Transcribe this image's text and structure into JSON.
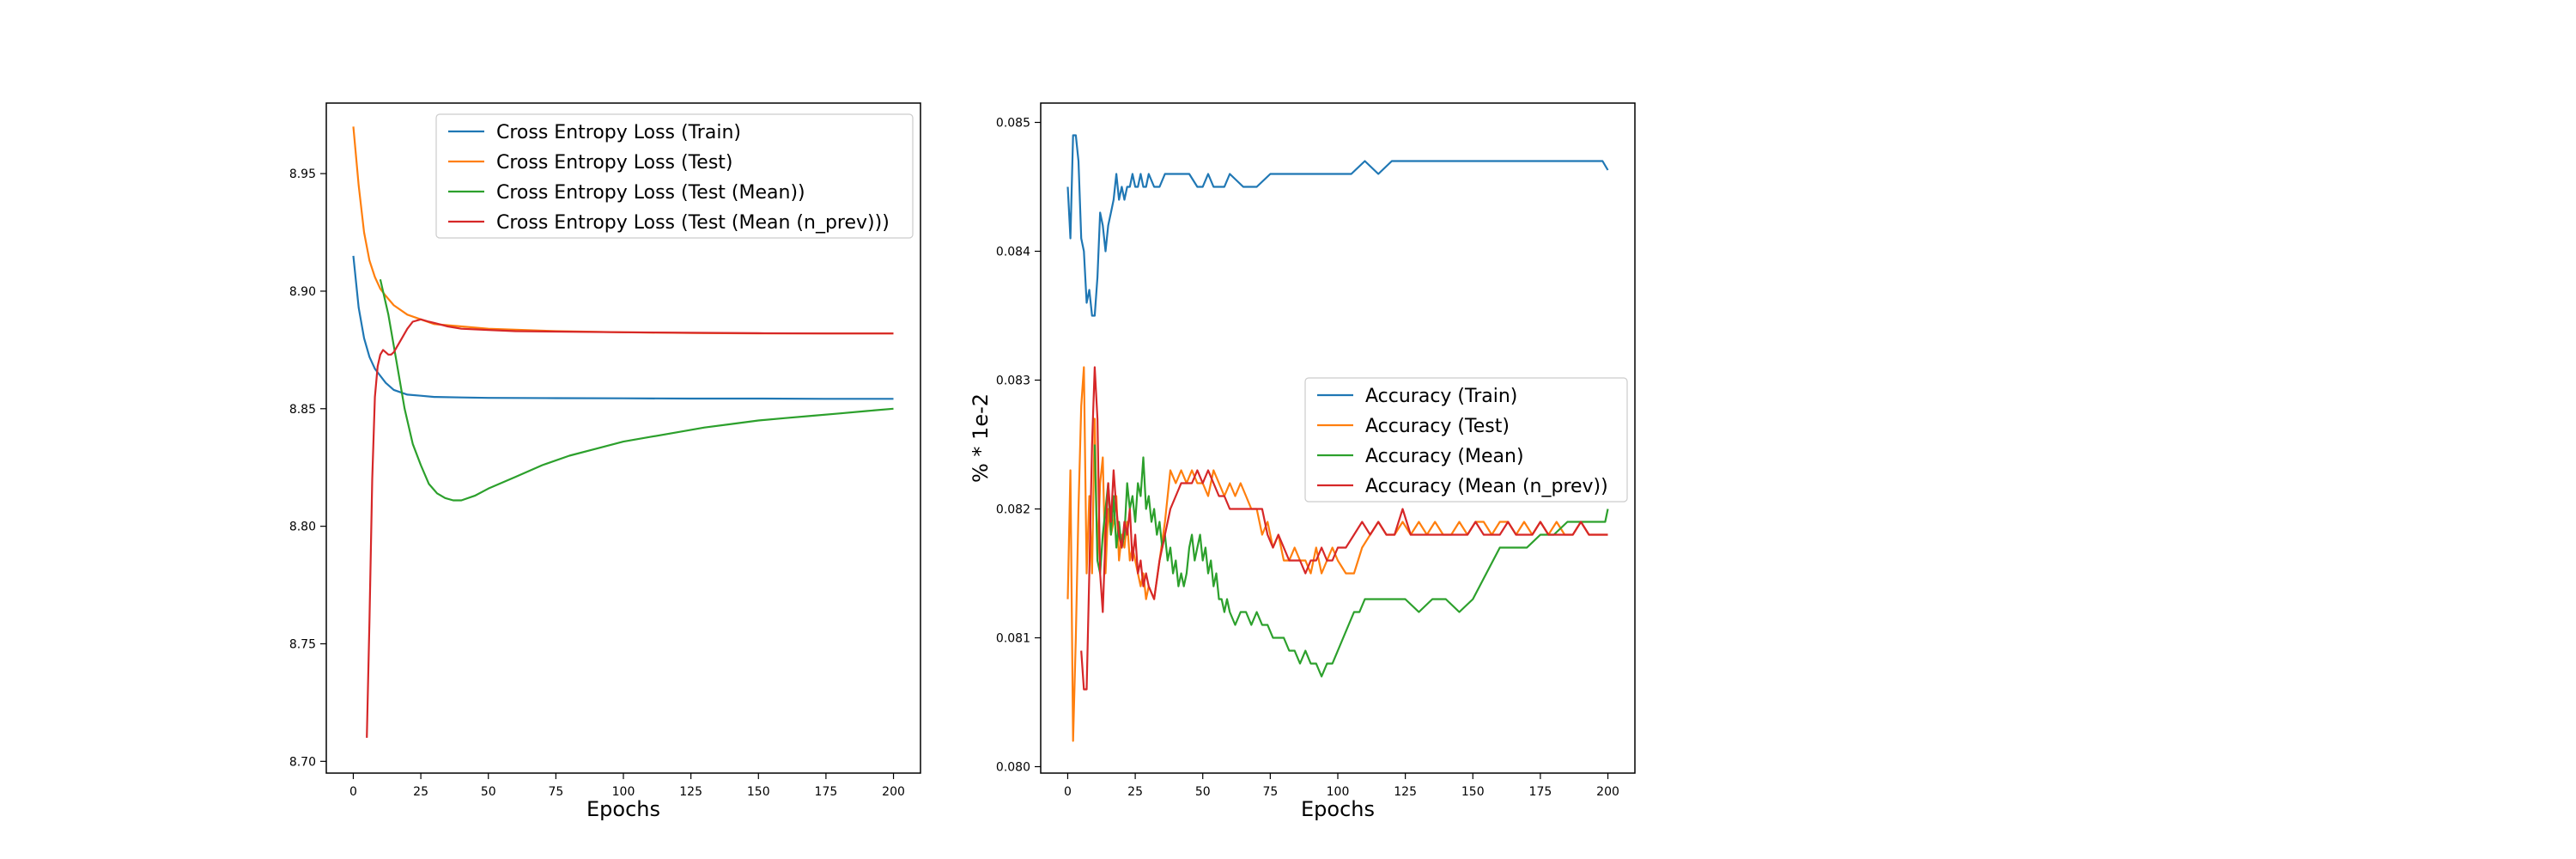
{
  "chart_data": [
    {
      "type": "line",
      "xlabel": "Epochs",
      "ylabel": "",
      "xlim": [
        -10,
        210
      ],
      "ylim": [
        8.695,
        8.98
      ],
      "xticks": [
        0,
        25,
        50,
        75,
        100,
        125,
        150,
        175,
        200
      ],
      "yticks": [
        8.7,
        8.75,
        8.8,
        8.85,
        8.9,
        8.95
      ],
      "xtick_labels": [
        "0",
        "25",
        "50",
        "75",
        "100",
        "125",
        "150",
        "175",
        "200"
      ],
      "ytick_labels": [
        "8.70",
        "8.75",
        "8.80",
        "8.85",
        "8.90",
        "8.95"
      ],
      "grid": false,
      "legend": "top-right",
      "series": [
        {
          "name": "Cross Entropy Loss (Train)",
          "color": "#1f77b4",
          "x": [
            0,
            2,
            4,
            6,
            8,
            10,
            12,
            15,
            20,
            25,
            30,
            40,
            50,
            75,
            100,
            125,
            150,
            175,
            200
          ],
          "y": [
            8.915,
            8.893,
            8.88,
            8.872,
            8.867,
            8.864,
            8.861,
            8.858,
            8.856,
            8.8555,
            8.855,
            8.8548,
            8.8546,
            8.8545,
            8.8544,
            8.8543,
            8.8543,
            8.8542,
            8.8542
          ]
        },
        {
          "name": "Cross Entropy Loss (Test)",
          "color": "#ff7f0e",
          "x": [
            0,
            2,
            4,
            6,
            8,
            10,
            12,
            15,
            20,
            25,
            30,
            40,
            50,
            75,
            100,
            125,
            150,
            175,
            200
          ],
          "y": [
            8.97,
            8.945,
            8.925,
            8.913,
            8.906,
            8.901,
            8.898,
            8.894,
            8.89,
            8.888,
            8.886,
            8.885,
            8.884,
            8.883,
            8.8825,
            8.8822,
            8.882,
            8.882,
            8.882
          ]
        },
        {
          "name": "Cross Entropy Loss (Test (Mean))",
          "color": "#2ca02c",
          "x": [
            10,
            13,
            16,
            19,
            22,
            25,
            28,
            31,
            34,
            37,
            40,
            45,
            50,
            60,
            70,
            80,
            90,
            100,
            110,
            120,
            130,
            140,
            150,
            160,
            170,
            180,
            190,
            200
          ],
          "y": [
            8.905,
            8.89,
            8.87,
            8.85,
            8.835,
            8.826,
            8.818,
            8.814,
            8.812,
            8.811,
            8.811,
            8.813,
            8.816,
            8.821,
            8.826,
            8.83,
            8.833,
            8.836,
            8.838,
            8.84,
            8.842,
            8.8435,
            8.845,
            8.846,
            8.847,
            8.848,
            8.849,
            8.85
          ]
        },
        {
          "name": "Cross Entropy Loss (Test (Mean (n_prev)))",
          "color": "#d62728",
          "x": [
            5,
            6,
            7,
            8,
            9,
            10,
            11,
            12,
            13,
            14,
            15,
            16,
            18,
            20,
            22,
            25,
            28,
            30,
            35,
            40,
            50,
            60,
            75,
            100,
            125,
            150,
            175,
            200
          ],
          "y": [
            8.71,
            8.76,
            8.82,
            8.855,
            8.868,
            8.873,
            8.875,
            8.874,
            8.873,
            8.873,
            8.874,
            8.876,
            8.88,
            8.884,
            8.887,
            8.888,
            8.887,
            8.8865,
            8.885,
            8.884,
            8.8835,
            8.883,
            8.8828,
            8.8825,
            8.8823,
            8.8821,
            8.882,
            8.882
          ]
        }
      ]
    },
    {
      "type": "line",
      "xlabel": "Epochs",
      "ylabel": "% * 1e-2",
      "xlim": [
        -10,
        210
      ],
      "ylim": [
        0.07995,
        0.08515
      ],
      "xticks": [
        0,
        25,
        50,
        75,
        100,
        125,
        150,
        175,
        200
      ],
      "yticks": [
        0.08,
        0.081,
        0.082,
        0.083,
        0.084,
        0.085
      ],
      "xtick_labels": [
        "0",
        "25",
        "50",
        "75",
        "100",
        "125",
        "150",
        "175",
        "200"
      ],
      "ytick_labels": [
        "0.080",
        "0.081",
        "0.082",
        "0.083",
        "0.084",
        "0.085"
      ],
      "grid": false,
      "legend": "center-right",
      "series": [
        {
          "name": "Accuracy (Train)",
          "color": "#1f77b4",
          "x": [
            0,
            1,
            2,
            3,
            4,
            5,
            6,
            7,
            8,
            9,
            10,
            11,
            12,
            13,
            14,
            15,
            16,
            17,
            18,
            19,
            20,
            21,
            22,
            23,
            24,
            25,
            26,
            27,
            28,
            29,
            30,
            32,
            34,
            36,
            38,
            40,
            42,
            45,
            48,
            50,
            52,
            54,
            56,
            58,
            60,
            65,
            70,
            75,
            80,
            85,
            90,
            95,
            100,
            105,
            110,
            115,
            120,
            125,
            130,
            135,
            140,
            145,
            150,
            155,
            160,
            165,
            170,
            175,
            180,
            185,
            190,
            195,
            198,
            200
          ],
          "y": [
            0.0845,
            0.0841,
            0.0849,
            0.0849,
            0.0847,
            0.0841,
            0.084,
            0.0836,
            0.0837,
            0.0835,
            0.0835,
            0.0838,
            0.0843,
            0.0842,
            0.084,
            0.0842,
            0.0843,
            0.0844,
            0.0846,
            0.0844,
            0.0845,
            0.0844,
            0.0845,
            0.0845,
            0.0846,
            0.0845,
            0.0845,
            0.0846,
            0.0845,
            0.0845,
            0.0846,
            0.0845,
            0.0845,
            0.0846,
            0.0846,
            0.0846,
            0.0846,
            0.0846,
            0.0845,
            0.0845,
            0.0846,
            0.0845,
            0.0845,
            0.0845,
            0.0846,
            0.0845,
            0.0845,
            0.0846,
            0.0846,
            0.0846,
            0.0846,
            0.0846,
            0.0846,
            0.0846,
            0.0847,
            0.0846,
            0.0847,
            0.0847,
            0.0847,
            0.0847,
            0.0847,
            0.0847,
            0.0847,
            0.0847,
            0.0847,
            0.0847,
            0.0847,
            0.0847,
            0.0847,
            0.0847,
            0.0847,
            0.0847,
            0.0847,
            0.08463
          ]
        },
        {
          "name": "Accuracy (Test)",
          "color": "#ff7f0e",
          "x": [
            0,
            1,
            2,
            3,
            4,
            5,
            6,
            7,
            8,
            9,
            10,
            11,
            12,
            13,
            14,
            15,
            16,
            17,
            18,
            19,
            20,
            21,
            22,
            23,
            24,
            25,
            26,
            27,
            28,
            29,
            30,
            32,
            34,
            36,
            38,
            40,
            42,
            44,
            46,
            48,
            50,
            52,
            54,
            56,
            58,
            60,
            62,
            64,
            66,
            68,
            70,
            72,
            74,
            76,
            78,
            80,
            82,
            84,
            86,
            88,
            90,
            92,
            94,
            96,
            98,
            100,
            103,
            106,
            109,
            112,
            115,
            118,
            121,
            124,
            127,
            130,
            133,
            136,
            139,
            142,
            145,
            148,
            151,
            154,
            157,
            160,
            163,
            166,
            169,
            172,
            175,
            178,
            181,
            184,
            187,
            190,
            193,
            196,
            199,
            200
          ],
          "y": [
            0.0813,
            0.0823,
            0.0802,
            0.081,
            0.082,
            0.0828,
            0.0831,
            0.0815,
            0.0821,
            0.0815,
            0.0827,
            0.0816,
            0.0822,
            0.0824,
            0.0815,
            0.082,
            0.0818,
            0.0819,
            0.0821,
            0.0816,
            0.0818,
            0.0817,
            0.0819,
            0.0816,
            0.0817,
            0.0816,
            0.0815,
            0.0814,
            0.0815,
            0.0813,
            0.0814,
            0.0813,
            0.0816,
            0.0819,
            0.0823,
            0.0822,
            0.0823,
            0.0822,
            0.0823,
            0.0822,
            0.0822,
            0.0821,
            0.0823,
            0.0822,
            0.0821,
            0.0822,
            0.0821,
            0.0822,
            0.0821,
            0.082,
            0.082,
            0.0818,
            0.0819,
            0.0817,
            0.0818,
            0.0816,
            0.0816,
            0.0817,
            0.0816,
            0.0816,
            0.0815,
            0.0817,
            0.0815,
            0.0816,
            0.0817,
            0.0816,
            0.0815,
            0.0815,
            0.0817,
            0.0818,
            0.0819,
            0.0818,
            0.0818,
            0.0819,
            0.0818,
            0.0819,
            0.0818,
            0.0819,
            0.0818,
            0.0818,
            0.0819,
            0.0818,
            0.0819,
            0.0819,
            0.0818,
            0.0819,
            0.0819,
            0.0818,
            0.0819,
            0.0818,
            0.0819,
            0.0818,
            0.0819,
            0.0818,
            0.0818,
            0.0819,
            0.0818,
            0.0818,
            0.0818,
            0.0818
          ]
        },
        {
          "name": "Accuracy (Mean)",
          "color": "#2ca02c",
          "x": [
            10,
            11,
            12,
            13,
            14,
            15,
            16,
            17,
            18,
            19,
            20,
            21,
            22,
            23,
            24,
            25,
            26,
            27,
            28,
            29,
            30,
            31,
            32,
            33,
            34,
            35,
            36,
            37,
            38,
            39,
            40,
            41,
            42,
            43,
            44,
            45,
            46,
            47,
            48,
            49,
            50,
            51,
            52,
            53,
            54,
            55,
            56,
            57,
            58,
            59,
            60,
            62,
            64,
            66,
            68,
            70,
            72,
            74,
            76,
            78,
            80,
            82,
            84,
            86,
            88,
            90,
            92,
            94,
            96,
            98,
            100,
            102,
            104,
            106,
            108,
            110,
            115,
            120,
            125,
            130,
            135,
            140,
            145,
            150,
            155,
            160,
            165,
            170,
            175,
            180,
            185,
            190,
            195,
            199,
            200
          ],
          "y": [
            0.0825,
            0.0816,
            0.0815,
            0.0818,
            0.082,
            0.0822,
            0.0818,
            0.0821,
            0.0817,
            0.0819,
            0.0817,
            0.0818,
            0.0822,
            0.082,
            0.0821,
            0.0819,
            0.0822,
            0.0821,
            0.0824,
            0.082,
            0.0821,
            0.0819,
            0.082,
            0.0818,
            0.0819,
            0.0817,
            0.0818,
            0.0816,
            0.0817,
            0.0815,
            0.0816,
            0.0814,
            0.0815,
            0.0814,
            0.0815,
            0.0817,
            0.0818,
            0.0816,
            0.0817,
            0.0818,
            0.0816,
            0.0817,
            0.0815,
            0.0816,
            0.0814,
            0.0815,
            0.0813,
            0.0813,
            0.0812,
            0.0813,
            0.0812,
            0.0811,
            0.0812,
            0.0812,
            0.0811,
            0.0812,
            0.0811,
            0.0811,
            0.081,
            0.081,
            0.081,
            0.0809,
            0.0809,
            0.0808,
            0.0809,
            0.0808,
            0.0808,
            0.0807,
            0.0808,
            0.0808,
            0.0809,
            0.081,
            0.0811,
            0.0812,
            0.0812,
            0.0813,
            0.0813,
            0.0813,
            0.0813,
            0.0812,
            0.0813,
            0.0813,
            0.0812,
            0.0813,
            0.0815,
            0.0817,
            0.0817,
            0.0817,
            0.0818,
            0.0818,
            0.0819,
            0.0819,
            0.0819,
            0.0819,
            0.082
          ]
        },
        {
          "name": "Accuracy (Mean (n_prev))",
          "color": "#d62728",
          "x": [
            5,
            6,
            7,
            8,
            9,
            10,
            11,
            12,
            13,
            14,
            15,
            16,
            17,
            18,
            19,
            20,
            21,
            22,
            23,
            24,
            25,
            26,
            27,
            28,
            29,
            30,
            32,
            34,
            36,
            38,
            40,
            42,
            44,
            46,
            48,
            50,
            52,
            54,
            56,
            58,
            60,
            62,
            64,
            66,
            68,
            70,
            72,
            74,
            76,
            78,
            80,
            82,
            84,
            86,
            88,
            90,
            92,
            94,
            96,
            98,
            100,
            103,
            106,
            109,
            112,
            115,
            118,
            121,
            124,
            127,
            130,
            133,
            136,
            139,
            142,
            145,
            148,
            151,
            154,
            157,
            160,
            163,
            166,
            169,
            172,
            175,
            178,
            181,
            184,
            187,
            190,
            193,
            196,
            199,
            200
          ],
          "y": [
            0.0809,
            0.0806,
            0.0806,
            0.0815,
            0.0825,
            0.0831,
            0.0827,
            0.0815,
            0.0812,
            0.0818,
            0.0822,
            0.0819,
            0.0823,
            0.082,
            0.0818,
            0.0817,
            0.0819,
            0.0818,
            0.082,
            0.0816,
            0.0818,
            0.0815,
            0.0816,
            0.0814,
            0.0815,
            0.0814,
            0.0813,
            0.0816,
            0.0818,
            0.082,
            0.0821,
            0.0822,
            0.0822,
            0.0822,
            0.0823,
            0.0822,
            0.0823,
            0.0822,
            0.0821,
            0.0821,
            0.082,
            0.082,
            0.082,
            0.082,
            0.082,
            0.082,
            0.082,
            0.0818,
            0.0817,
            0.0818,
            0.0817,
            0.0816,
            0.0816,
            0.0816,
            0.0815,
            0.0816,
            0.0816,
            0.0817,
            0.0816,
            0.0816,
            0.0817,
            0.0817,
            0.0818,
            0.0819,
            0.0818,
            0.0819,
            0.0818,
            0.0818,
            0.082,
            0.0818,
            0.0818,
            0.0818,
            0.0818,
            0.0818,
            0.0818,
            0.0818,
            0.0818,
            0.0819,
            0.0818,
            0.0818,
            0.0818,
            0.0819,
            0.0818,
            0.0818,
            0.0818,
            0.0819,
            0.0818,
            0.0818,
            0.0818,
            0.0818,
            0.0819,
            0.0818,
            0.0818,
            0.0818,
            0.0818
          ]
        }
      ]
    }
  ]
}
